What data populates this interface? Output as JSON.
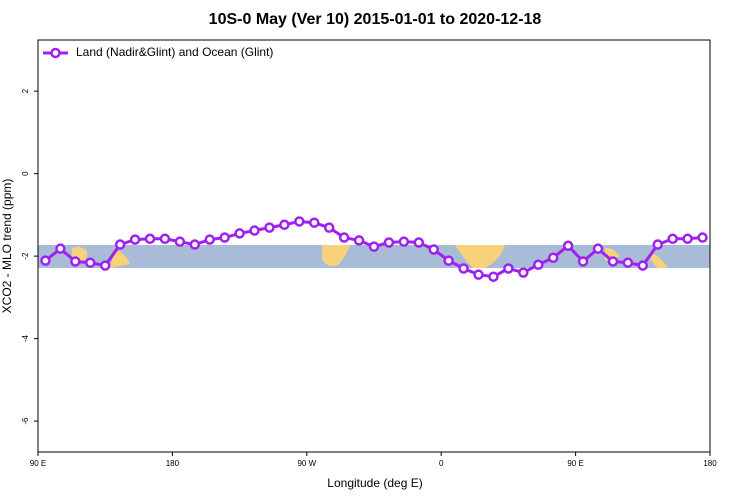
{
  "chart_data": {
    "type": "line",
    "title": "10S-0 May (Ver 10)   2015-01-01 to 2020-12-18",
    "x_label": "Longitude (deg E)",
    "y_label": "XCO2 - MLO trend (ppm)",
    "x": [
      95,
      105,
      115,
      125,
      135,
      145,
      155,
      165,
      175,
      185,
      195,
      205,
      215,
      225,
      235,
      245,
      255,
      265,
      275,
      285,
      295,
      305,
      315,
      325,
      335,
      345,
      355,
      365,
      375,
      385,
      395,
      405,
      415,
      425,
      435,
      445,
      455,
      465,
      475,
      485,
      495,
      505,
      515,
      525,
      535
    ],
    "series": [
      {
        "name": "Land (Nadir&Glint) and Ocean (Glint)",
        "color": "#a020f0",
        "values": [
          -2.11,
          -1.82,
          -2.13,
          -2.16,
          -2.23,
          -1.72,
          -1.6,
          -1.58,
          -1.58,
          -1.65,
          -1.72,
          -1.6,
          -1.55,
          -1.45,
          -1.38,
          -1.31,
          -1.24,
          -1.16,
          -1.19,
          -1.31,
          -1.55,
          -1.62,
          -1.77,
          -1.67,
          -1.65,
          -1.67,
          -1.84,
          -2.11,
          -2.3,
          -2.45,
          -2.5,
          -2.3,
          -2.4,
          -2.21,
          -2.04,
          -1.75,
          -2.13,
          -1.82,
          -2.13,
          -2.16,
          -2.23,
          -1.72,
          -1.58,
          -1.58,
          -1.55
        ]
      }
    ],
    "xlim": [
      90,
      540
    ],
    "xticks": [
      {
        "value": 90,
        "label": "90 E"
      },
      180,
      {
        "value": 270,
        "label": "90 W"
      },
      {
        "value": 360,
        "label": "0"
      },
      {
        "value": 450,
        "label": "90 E"
      },
      {
        "value": 540,
        "label": "180"
      }
    ],
    "ylim": [
      -6.75,
      3.24
    ],
    "yticks": [
      -6,
      -4,
      -2,
      0,
      2
    ],
    "legend": "top-left"
  }
}
